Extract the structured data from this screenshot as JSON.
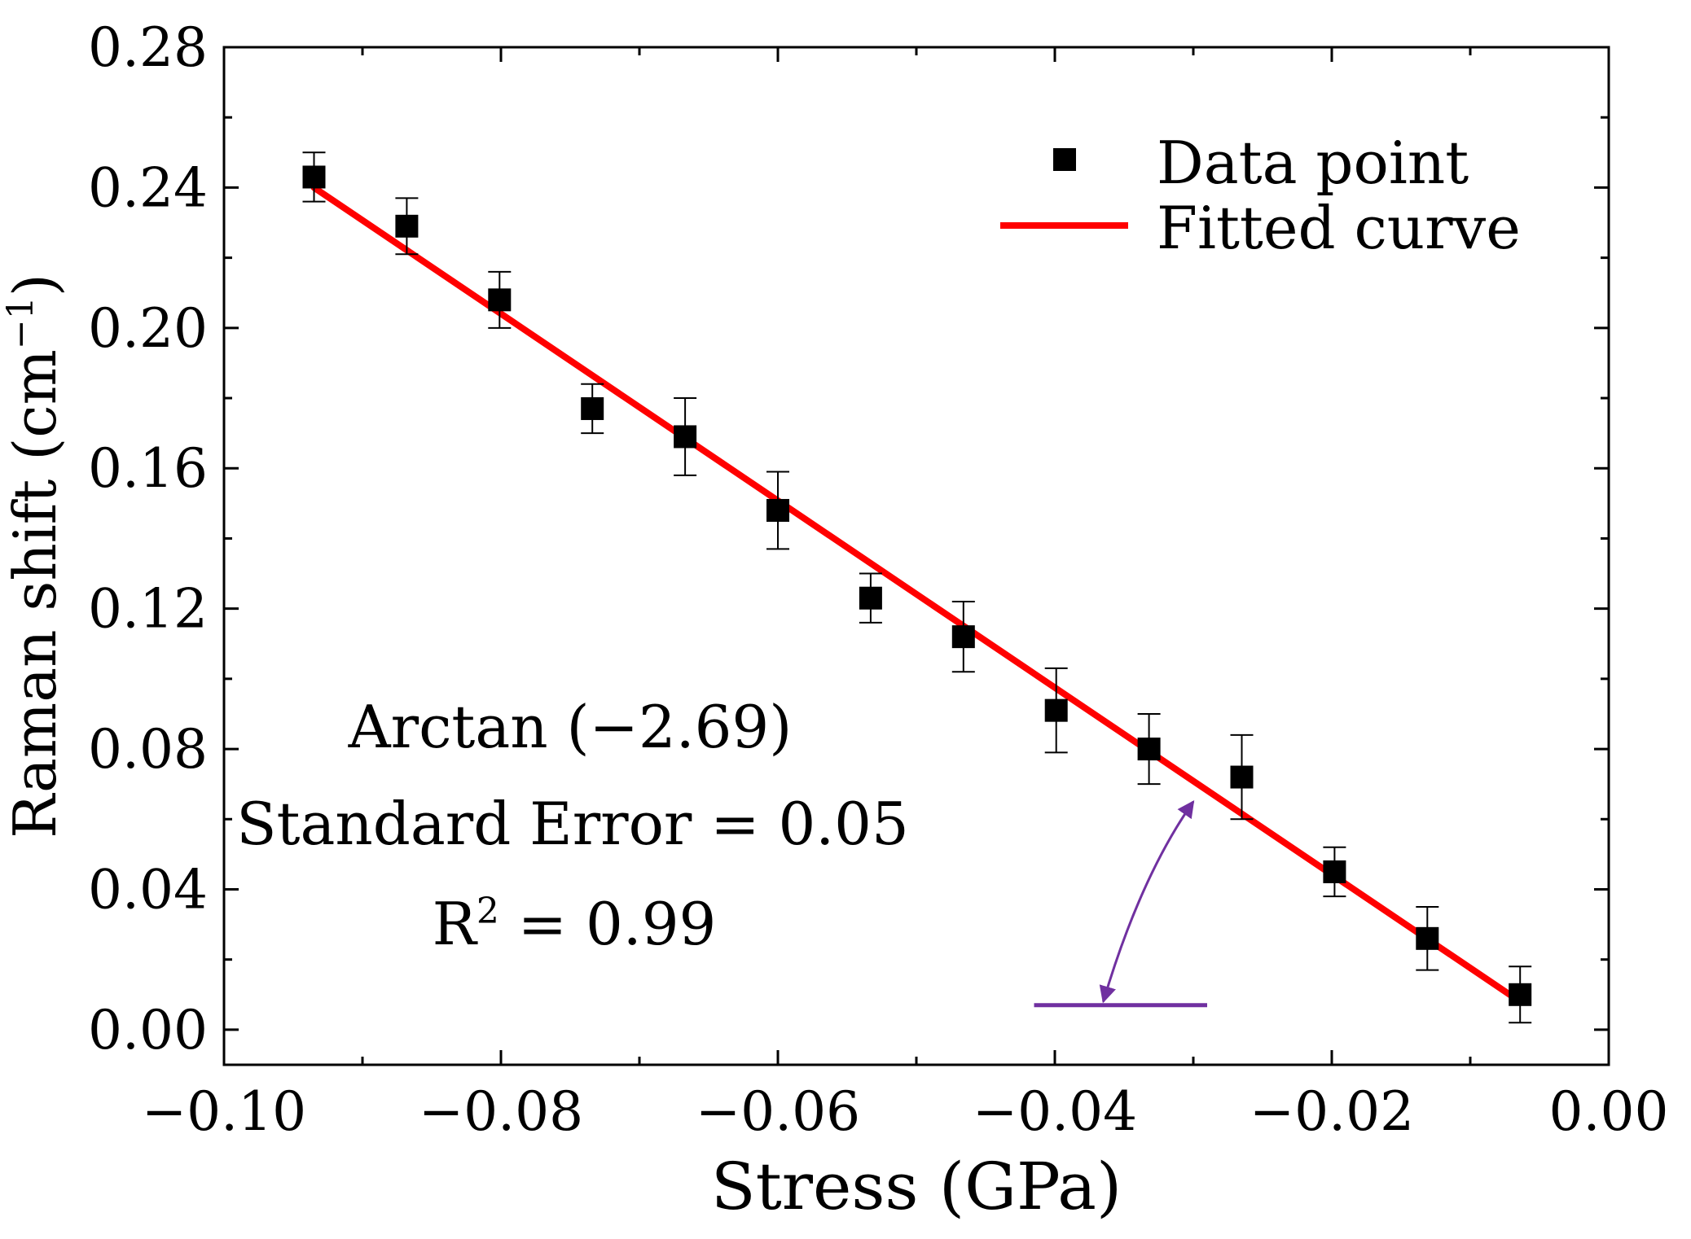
{
  "chart_data": {
    "type": "scatter",
    "xlabel": "Stress (GPa)",
    "ylabel": "Raman shift (cm",
    "ylabel_unit_sup": "−1",
    "ylabel_close": ")",
    "xlim": [
      -0.1,
      0.0
    ],
    "ylim": [
      -0.01,
      0.28
    ],
    "x_ticks": [
      -0.1,
      -0.08,
      -0.06,
      -0.04,
      -0.02,
      0.0
    ],
    "x_tick_labels": [
      "−0.10",
      "−0.08",
      "−0.06",
      "−0.04",
      "−0.02",
      "0.00"
    ],
    "y_ticks": [
      0.0,
      0.04,
      0.08,
      0.12,
      0.16,
      0.2,
      0.24,
      0.28
    ],
    "y_tick_labels": [
      "0.00",
      "0.04",
      "0.08",
      "0.12",
      "0.16",
      "0.20",
      "0.24",
      "0.28"
    ],
    "grid": false,
    "legend_position": "top-right",
    "series": [
      {
        "name": "Data point",
        "kind": "scatter",
        "color": "#000000",
        "x": [
          -0.0935,
          -0.0868,
          -0.0801,
          -0.0734,
          -0.0667,
          -0.06,
          -0.0533,
          -0.0466,
          -0.0399,
          -0.0332,
          -0.0265,
          -0.0198,
          -0.0131,
          -0.0064
        ],
        "y": [
          0.243,
          0.229,
          0.208,
          0.177,
          0.169,
          0.148,
          0.123,
          0.112,
          0.091,
          0.08,
          0.072,
          0.045,
          0.026,
          0.01
        ],
        "err": [
          0.007,
          0.008,
          0.008,
          0.007,
          0.011,
          0.011,
          0.007,
          0.01,
          0.012,
          0.01,
          0.012,
          0.007,
          0.009,
          0.008
        ]
      },
      {
        "name": "Fitted curve",
        "kind": "line",
        "color": "#ff0000",
        "x": [
          -0.0935,
          -0.0064
        ],
        "y": [
          0.24,
          0.008
        ]
      }
    ],
    "annotations": {
      "line1": "Arctan (−2.69)",
      "line2": "Standard Error = 0.05",
      "line3_prefix": "R",
      "line3_sup": "2",
      "line3_suffix": " = 0.99",
      "angle_color": "#7030a0",
      "angle_base_x": [
        -0.0415,
        -0.029
      ],
      "angle_base_y": 0.007,
      "angle_arc_start": [
        -0.0365,
        0.008
      ],
      "angle_arc_end": [
        -0.03,
        0.065
      ]
    }
  }
}
